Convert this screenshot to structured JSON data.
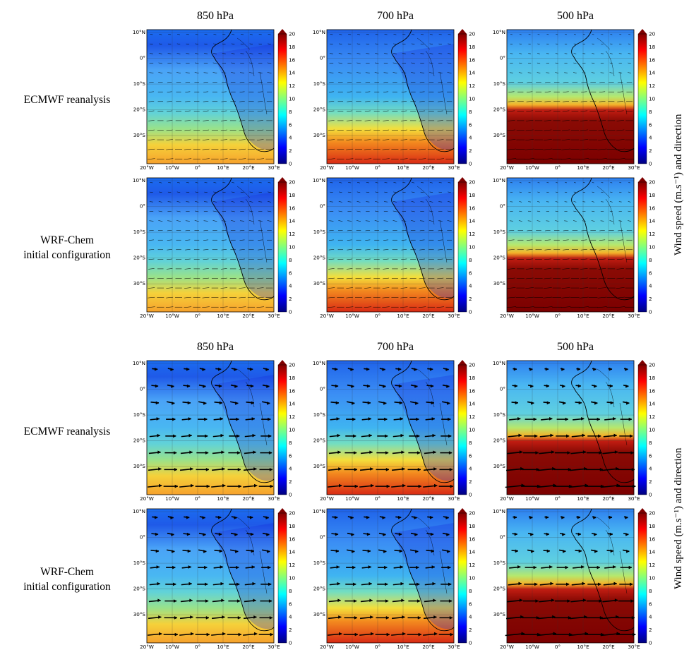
{
  "columns": [
    "850 hPa",
    "700 hPa",
    "500 hPa"
  ],
  "blocks": [
    {
      "rows": [
        "ECMWF reanalysis",
        "WRF-Chem|initial configuration"
      ],
      "vectors": "small"
    },
    {
      "rows": [
        "ECMWF reanalysis",
        "WRF-Chem|initial configuration"
      ],
      "vectors": "large"
    }
  ],
  "side_label": "Wind speed (m.s⁻¹) and direction",
  "lat_ticks": [
    "10°N",
    "0°",
    "10°S",
    "20°S",
    "30°S"
  ],
  "lon_ticks": [
    "20°W",
    "10°W",
    "0°",
    "10°E",
    "20°E",
    "30°E"
  ],
  "colorbar": {
    "min": 0,
    "max": 20,
    "ticks": [
      "20",
      "18",
      "16",
      "14",
      "12",
      "10",
      "8",
      "6",
      "4",
      "2",
      "0"
    ],
    "extend": "max",
    "colormap": "jet"
  },
  "colors": {
    "land_outline": "#000000",
    "arrow": "#000000"
  }
}
